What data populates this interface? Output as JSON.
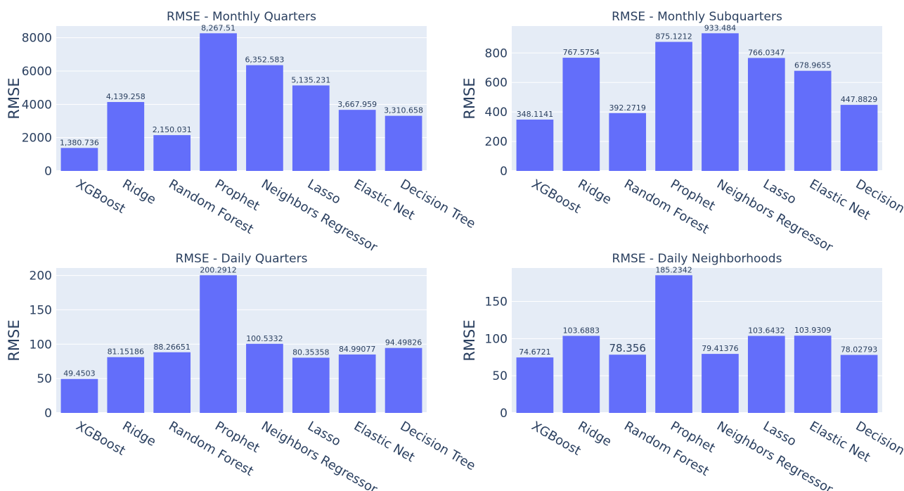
{
  "chart_data": [
    {
      "type": "bar",
      "title": "RMSE - Monthly Quarters",
      "ylabel": "RMSE",
      "categories": [
        "XGBoost",
        "Ridge",
        "Random Forest",
        "Prophet",
        "Neighbors Regressor",
        "Lasso",
        "Elastic Net",
        "Decision Tree"
      ],
      "values": [
        1380.736,
        4139.258,
        2150.031,
        8267.51,
        6352.583,
        5135.231,
        3667.959,
        3310.658
      ],
      "value_labels": [
        "1,380.736",
        "4,139.258",
        "2,150.031",
        "8,267.51",
        "6,352.583",
        "5,135.231",
        "3,667.959",
        "3,310.658"
      ],
      "yticks": [
        0,
        2000,
        4000,
        6000,
        8000
      ],
      "ytick_labels": [
        "0",
        "2000",
        "4000",
        "6000",
        "8000"
      ],
      "ylim": [
        0,
        8702.6
      ],
      "grid": true,
      "color": "#636efa"
    },
    {
      "type": "bar",
      "title": "RMSE - Monthly Subquarters",
      "ylabel": "RMSE",
      "categories": [
        "XGBoost",
        "Ridge",
        "Random Forest",
        "Prophet",
        "Neighbors Regressor",
        "Lasso",
        "Elastic Net",
        "Decision"
      ],
      "values": [
        348.1141,
        767.5754,
        392.2719,
        875.1212,
        933.484,
        766.0347,
        678.9655,
        447.8829
      ],
      "value_labels": [
        "348.1141",
        "767.5754",
        "392.2719",
        "875.1212",
        "933.484",
        "766.0347",
        "678.9655",
        "447.8829"
      ],
      "yticks": [
        0,
        200,
        400,
        600,
        800
      ],
      "ytick_labels": [
        "0",
        "200",
        "400",
        "600",
        "800"
      ],
      "ylim": [
        0,
        982.6
      ],
      "grid": true,
      "color": "#636efa"
    },
    {
      "type": "bar",
      "title": "RMSE - Daily Quarters",
      "ylabel": "RMSE",
      "categories": [
        "XGBoost",
        "Ridge",
        "Random Forest",
        "Prophet",
        "Neighbors Regressor",
        "Lasso",
        "Elastic Net",
        "Decision Tree"
      ],
      "values": [
        49.4503,
        81.15186,
        88.26651,
        200.2912,
        100.5332,
        80.35358,
        84.99077,
        94.49826
      ],
      "value_labels": [
        "49.4503",
        "81.15186",
        "88.26651",
        "200.2912",
        "100.5332",
        "80.35358",
        "84.99077",
        "94.49826"
      ],
      "yticks": [
        0,
        50,
        100,
        150,
        200
      ],
      "ytick_labels": [
        "0",
        "50",
        "100",
        "150",
        "200"
      ],
      "ylim": [
        0,
        210.83
      ],
      "grid": true,
      "color": "#636efa"
    },
    {
      "type": "bar",
      "title": "RMSE - Daily Neighborhoods",
      "ylabel": "RMSE",
      "categories": [
        "XGBoost",
        "Ridge",
        "Random Forest",
        "Prophet",
        "Neighbors Regressor",
        "Lasso",
        "Elastic Net",
        "Decision"
      ],
      "values": [
        74.6721,
        103.6883,
        78.356,
        185.2342,
        79.41376,
        103.6432,
        103.9309,
        78.02793
      ],
      "value_labels": [
        "74.6721",
        "103.6883",
        "78.356",
        "185.2342",
        "79.41376",
        "103.6432",
        "103.9309",
        "78.02793"
      ],
      "yticks": [
        0,
        50,
        100,
        150
      ],
      "ytick_labels": [
        "0",
        "50",
        "100",
        "150"
      ],
      "ylim": [
        0,
        194.98
      ],
      "grid": true,
      "color": "#636efa"
    }
  ]
}
